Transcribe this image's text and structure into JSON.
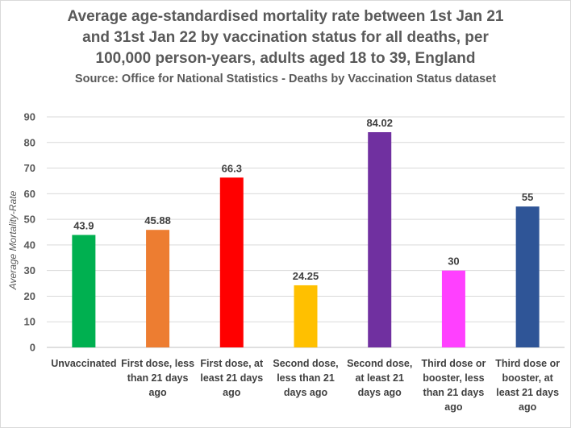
{
  "chart_data": {
    "type": "bar",
    "title_lines": [
      "Average age-standardised mortality rate between 1st Jan 21",
      "and  31st Jan 22 by vaccination status for all deaths, per",
      "100,000 person-years, adults aged 18 to 39, England"
    ],
    "subtitle": "Source: Office for National Statistics - Deaths by Vaccination Status dataset",
    "ylabel": "Average Mortality-Rate",
    "xlabel": "",
    "ylim": [
      0,
      90
    ],
    "yticks": [
      "0",
      "10",
      "20",
      "30",
      "40",
      "50",
      "60",
      "70",
      "80",
      "90"
    ],
    "grid": true,
    "legend": "none",
    "categories": [
      [
        "Unvaccinated"
      ],
      [
        "First dose, less",
        "than 21 days",
        "ago"
      ],
      [
        "First dose, at",
        "least 21 days",
        "ago"
      ],
      [
        "Second dose,",
        "less than 21",
        "days ago"
      ],
      [
        "Second dose,",
        "at least 21",
        "days ago"
      ],
      [
        "Third dose or",
        "booster, less",
        "than 21 days",
        "ago"
      ],
      [
        "Third dose or",
        "booster, at",
        "least 21 days",
        "ago"
      ]
    ],
    "values": [
      43.9,
      45.88,
      66.3,
      24.25,
      84.02,
      30,
      55
    ],
    "data_labels": [
      "43.9",
      "45.88",
      "66.3",
      "24.25",
      "84.02",
      "30",
      "55"
    ],
    "colors": [
      "#00b050",
      "#ed7d31",
      "#ff0000",
      "#ffc000",
      "#7030a0",
      "#ff40ff",
      "#2f5597"
    ]
  }
}
